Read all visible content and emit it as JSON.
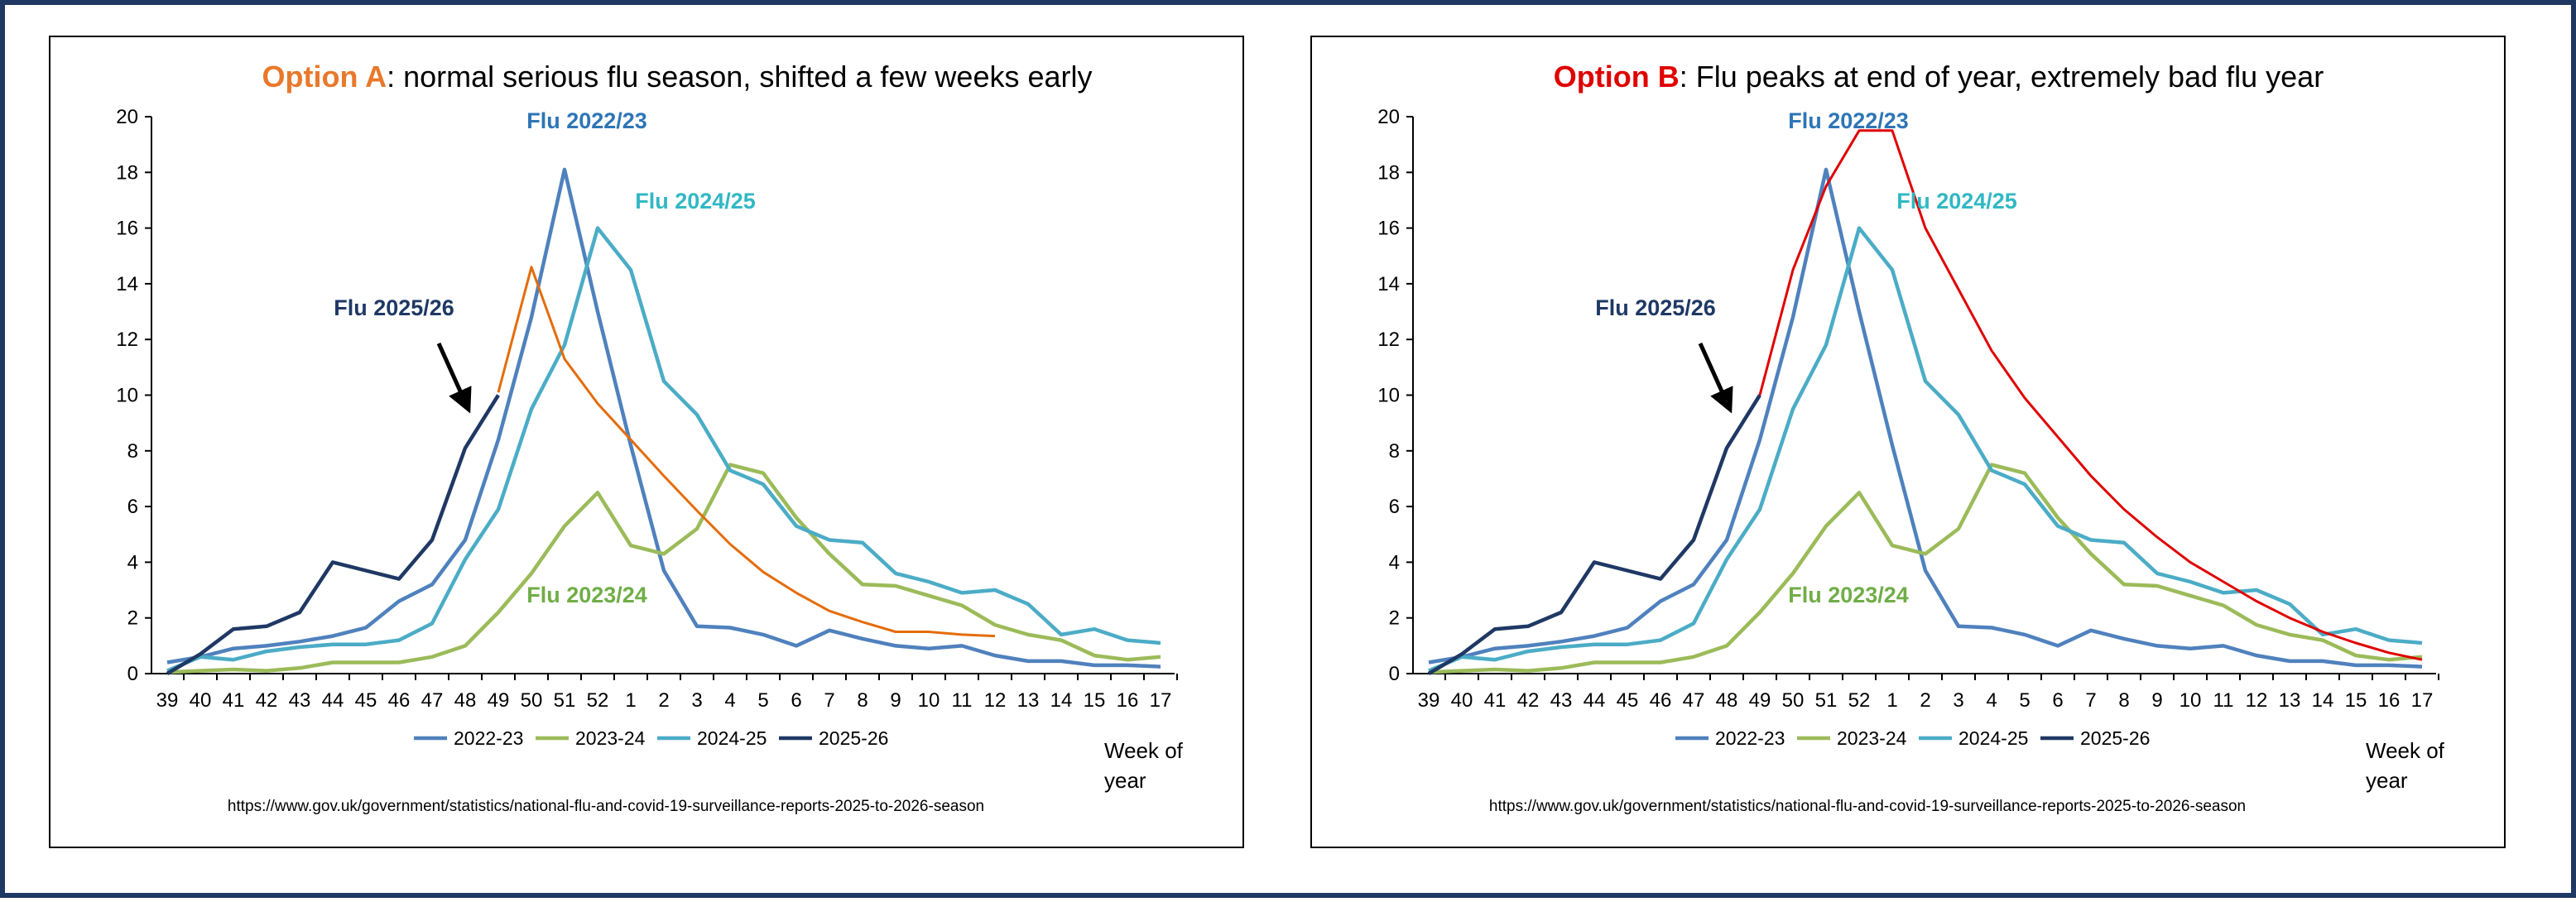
{
  "chart_data": [
    {
      "type": "line",
      "title_highlight": "Option A",
      "title_highlight_color": "#e8792b",
      "title": ": normal serious flu season, shifted a few weeks early",
      "categories": [
        "39",
        "40",
        "41",
        "42",
        "43",
        "44",
        "45",
        "46",
        "47",
        "48",
        "49",
        "50",
        "51",
        "52",
        "1",
        "2",
        "3",
        "4",
        "5",
        "6",
        "7",
        "8",
        "9",
        "10",
        "11",
        "12",
        "13",
        "14",
        "15",
        "16",
        "17"
      ],
      "ylim": [
        0,
        20
      ],
      "yticks": [
        0,
        2,
        4,
        6,
        8,
        10,
        12,
        14,
        16,
        18,
        20
      ],
      "series": [
        {
          "name": "2022-23",
          "color": "#4f81bd",
          "values": [
            0.4,
            0.6,
            0.9,
            1.0,
            1.15,
            1.35,
            1.65,
            2.6,
            3.2,
            4.8,
            8.4,
            12.8,
            18.1,
            13.0,
            8.2,
            3.7,
            1.7,
            1.65,
            1.4,
            1.0,
            1.55,
            1.25,
            1.0,
            0.9,
            1.0,
            0.65,
            0.45,
            0.45,
            0.3,
            0.3,
            0.25
          ]
        },
        {
          "name": "2023-24",
          "color": "#9bbb59",
          "values": [
            0.05,
            0.1,
            0.15,
            0.1,
            0.2,
            0.4,
            0.4,
            0.4,
            0.6,
            1.0,
            2.2,
            3.6,
            5.3,
            6.5,
            4.6,
            4.3,
            5.2,
            7.5,
            7.2,
            5.6,
            4.3,
            3.2,
            3.15,
            2.8,
            2.45,
            1.75,
            1.4,
            1.2,
            0.65,
            0.5,
            0.6
          ]
        },
        {
          "name": "2024-25",
          "color": "#4bacc6",
          "values": [
            0.1,
            0.6,
            0.5,
            0.8,
            0.95,
            1.05,
            1.05,
            1.2,
            1.8,
            4.1,
            5.9,
            9.5,
            11.8,
            16.0,
            14.5,
            10.5,
            9.3,
            7.3,
            6.8,
            5.3,
            4.8,
            4.7,
            3.6,
            3.3,
            2.9,
            3.0,
            2.5,
            1.4,
            1.6,
            1.2,
            1.1
          ]
        },
        {
          "name": "2025-26",
          "color": "#1f3864",
          "values": [
            0,
            0.7,
            1.6,
            1.7,
            2.2,
            4.0,
            3.7,
            3.4,
            4.8,
            8.1,
            10.0,
            null,
            null,
            null,
            null,
            null,
            null,
            null,
            null,
            null,
            null,
            null,
            null,
            null,
            null,
            null,
            null,
            null,
            null,
            null,
            null
          ]
        }
      ],
      "projection": {
        "color": "#e46c0a",
        "values": [
          null,
          null,
          null,
          null,
          null,
          null,
          null,
          null,
          null,
          null,
          10.1,
          14.6,
          11.3,
          9.7,
          8.4,
          7.1,
          5.85,
          4.65,
          3.65,
          2.9,
          2.25,
          1.85,
          1.5,
          1.5,
          1.4,
          1.35,
          null,
          null,
          null,
          null,
          null
        ]
      },
      "annotations": [
        {
          "text": "Flu 2022/23",
          "color": "#2e75b6"
        },
        {
          "text": "Flu 2024/25",
          "color": "#31b8c4"
        },
        {
          "text": "Flu 2025/26",
          "color": "#1f3864"
        },
        {
          "text": "Flu 2023/24",
          "color": "#70ad47"
        }
      ],
      "xlabel": [
        "Week of",
        "year"
      ],
      "source": "https://www.gov.uk/government/statistics/national-flu-and-covid-19-surveillance-reports-2025-to-2026-season"
    },
    {
      "type": "line",
      "title_highlight": "Option B",
      "title_highlight_color": "#e00000",
      "title": ": Flu peaks at end of year, extremely bad flu year",
      "categories": [
        "39",
        "40",
        "41",
        "42",
        "43",
        "44",
        "45",
        "46",
        "47",
        "48",
        "49",
        "50",
        "51",
        "52",
        "1",
        "2",
        "3",
        "4",
        "5",
        "6",
        "7",
        "8",
        "9",
        "10",
        "11",
        "12",
        "13",
        "14",
        "15",
        "16",
        "17"
      ],
      "ylim": [
        0,
        20
      ],
      "yticks": [
        0,
        2,
        4,
        6,
        8,
        10,
        12,
        14,
        16,
        18,
        20
      ],
      "series": [
        {
          "name": "2022-23",
          "color": "#4f81bd",
          "values": [
            0.4,
            0.6,
            0.9,
            1.0,
            1.15,
            1.35,
            1.65,
            2.6,
            3.2,
            4.8,
            8.4,
            12.8,
            18.1,
            13.0,
            8.2,
            3.7,
            1.7,
            1.65,
            1.4,
            1.0,
            1.55,
            1.25,
            1.0,
            0.9,
            1.0,
            0.65,
            0.45,
            0.45,
            0.3,
            0.3,
            0.25
          ]
        },
        {
          "name": "2023-24",
          "color": "#9bbb59",
          "values": [
            0.05,
            0.1,
            0.15,
            0.1,
            0.2,
            0.4,
            0.4,
            0.4,
            0.6,
            1.0,
            2.2,
            3.6,
            5.3,
            6.5,
            4.6,
            4.3,
            5.2,
            7.5,
            7.2,
            5.6,
            4.3,
            3.2,
            3.15,
            2.8,
            2.45,
            1.75,
            1.4,
            1.2,
            0.65,
            0.5,
            0.6
          ]
        },
        {
          "name": "2024-25",
          "color": "#4bacc6",
          "values": [
            0.1,
            0.6,
            0.5,
            0.8,
            0.95,
            1.05,
            1.05,
            1.2,
            1.8,
            4.1,
            5.9,
            9.5,
            11.8,
            16.0,
            14.5,
            10.5,
            9.3,
            7.3,
            6.8,
            5.3,
            4.8,
            4.7,
            3.6,
            3.3,
            2.9,
            3.0,
            2.5,
            1.4,
            1.6,
            1.2,
            1.1
          ]
        },
        {
          "name": "2025-26",
          "color": "#1f3864",
          "values": [
            0,
            0.7,
            1.6,
            1.7,
            2.2,
            4.0,
            3.7,
            3.4,
            4.8,
            8.1,
            10.0,
            null,
            null,
            null,
            null,
            null,
            null,
            null,
            null,
            null,
            null,
            null,
            null,
            null,
            null,
            null,
            null,
            null,
            null,
            null,
            null
          ]
        }
      ],
      "projection": {
        "color": "#e00000",
        "values": [
          null,
          null,
          null,
          null,
          null,
          null,
          null,
          null,
          null,
          null,
          10.0,
          14.5,
          17.5,
          19.5,
          19.5,
          16.0,
          13.8,
          11.6,
          9.9,
          8.5,
          7.1,
          5.9,
          4.9,
          4.0,
          3.3,
          2.6,
          2.0,
          1.5,
          1.1,
          0.75,
          0.5
        ]
      },
      "annotations": [
        {
          "text": "Flu 2022/23",
          "color": "#2e75b6"
        },
        {
          "text": "Flu 2024/25",
          "color": "#31b8c4"
        },
        {
          "text": "Flu 2025/26",
          "color": "#1f3864"
        },
        {
          "text": "Flu 2023/24",
          "color": "#70ad47"
        }
      ],
      "xlabel": [
        "Week of",
        "year"
      ],
      "source": "https://www.gov.uk/government/statistics/national-flu-and-covid-19-surveillance-reports-2025-to-2026-season"
    }
  ]
}
